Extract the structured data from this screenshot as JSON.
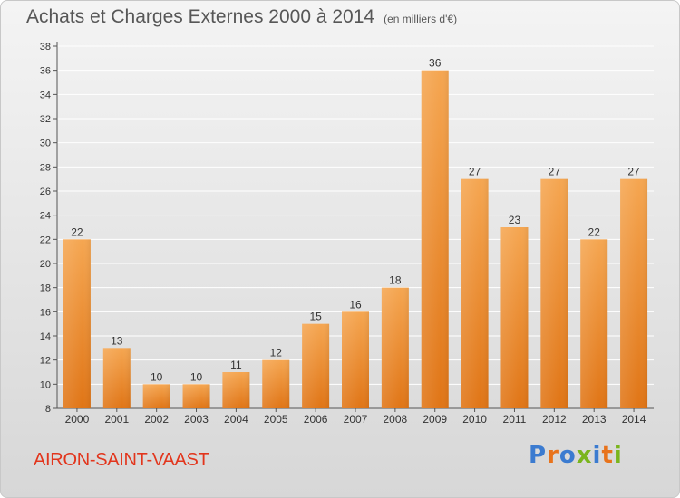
{
  "chart_data": {
    "type": "bar",
    "title": "Achats et Charges Externes 2000 à 2014",
    "unit_note": "(en milliers d'€)",
    "categories": [
      "2000",
      "2001",
      "2002",
      "2003",
      "2004",
      "2005",
      "2006",
      "2007",
      "2008",
      "2009",
      "2010",
      "2011",
      "2012",
      "2013",
      "2014"
    ],
    "values": [
      22,
      13,
      10,
      10,
      11,
      12,
      15,
      16,
      18,
      36,
      27,
      23,
      27,
      22,
      27
    ],
    "ylim": [
      8,
      38
    ],
    "yticks": [
      8,
      10,
      12,
      14,
      16,
      18,
      20,
      22,
      24,
      26,
      28,
      30,
      32,
      34,
      36,
      38
    ],
    "grid": true,
    "bar_color_top": "#f5a651",
    "bar_color_bottom": "#e07516"
  },
  "commune": "AIRON-SAINT-VAAST",
  "logo": {
    "text": "Proxiti",
    "letter_colors": [
      "#3b7bd0",
      "#e8731c",
      "#3b7bd0",
      "#7ab51d",
      "#3b7bd0",
      "#e8731c",
      "#7ab51d"
    ]
  }
}
